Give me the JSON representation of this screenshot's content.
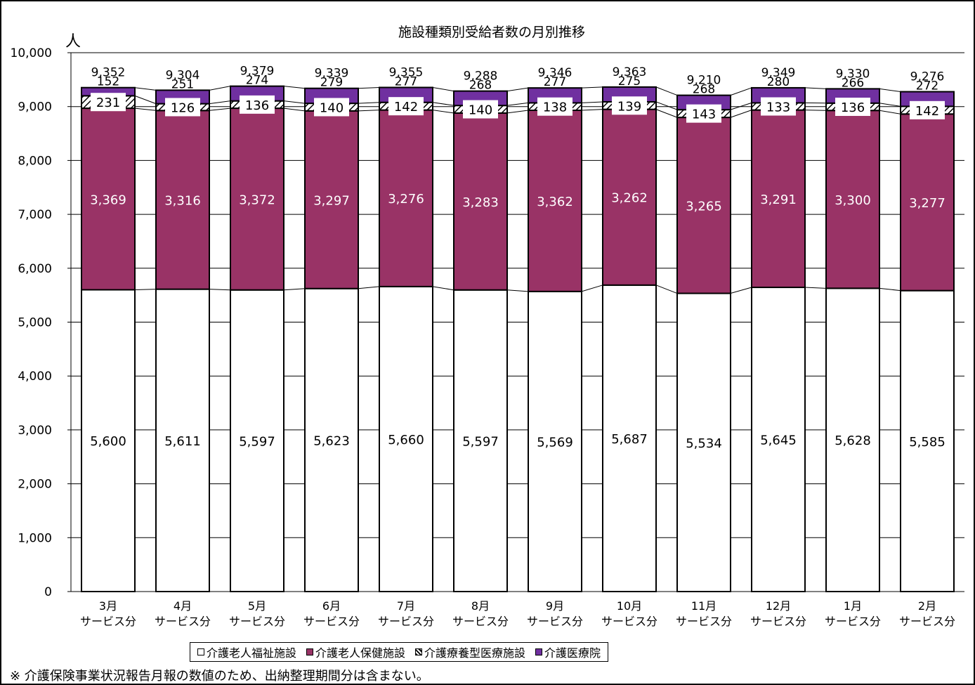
{
  "chart_data": {
    "type": "bar",
    "stacked": true,
    "title": "施設種類別受給者数の月別推移",
    "unit_label": "人",
    "ylim": [
      0,
      10000
    ],
    "yticks": [
      "0",
      "1,000",
      "2,000",
      "3,000",
      "4,000",
      "5,000",
      "6,000",
      "7,000",
      "8,000",
      "9,000",
      "10,000"
    ],
    "grid": true,
    "legend_position": "bottom",
    "categories": [
      [
        "3月",
        "サービス分"
      ],
      [
        "4月",
        "サービス分"
      ],
      [
        "5月",
        "サービス分"
      ],
      [
        "6月",
        "サービス分"
      ],
      [
        "7月",
        "サービス分"
      ],
      [
        "8月",
        "サービス分"
      ],
      [
        "9月",
        "サービス分"
      ],
      [
        "10月",
        "サービス分"
      ],
      [
        "11月",
        "サービス分"
      ],
      [
        "12月",
        "サービス分"
      ],
      [
        "1月",
        "サービス分"
      ],
      [
        "2月",
        "サービス分"
      ]
    ],
    "series": [
      {
        "name": "介護老人福祉施設",
        "color": "#ffffff",
        "values": [
          5600,
          5611,
          5597,
          5623,
          5660,
          5597,
          5569,
          5687,
          5534,
          5645,
          5628,
          5585
        ],
        "labels": [
          "5,600",
          "5,611",
          "5,597",
          "5,623",
          "5,660",
          "5,597",
          "5,569",
          "5,687",
          "5,534",
          "5,645",
          "5,628",
          "5,585"
        ]
      },
      {
        "name": "介護老人保健施設",
        "color": "#993366",
        "values": [
          3369,
          3316,
          3372,
          3297,
          3276,
          3283,
          3362,
          3262,
          3265,
          3291,
          3300,
          3277
        ],
        "labels": [
          "3,369",
          "3,316",
          "3,372",
          "3,297",
          "3,276",
          "3,283",
          "3,362",
          "3,262",
          "3,265",
          "3,291",
          "3,300",
          "3,277"
        ]
      },
      {
        "name": "介護療養型医療施設",
        "color": "#ffffff",
        "values": [
          231,
          126,
          136,
          140,
          142,
          140,
          138,
          139,
          143,
          133,
          136,
          142
        ],
        "labels": [
          "231",
          "126",
          "136",
          "140",
          "142",
          "140",
          "138",
          "139",
          "143",
          "133",
          "136",
          "142"
        ]
      },
      {
        "name": "介護医療院",
        "color": "#7030a0",
        "values": [
          152,
          251,
          274,
          279,
          277,
          268,
          277,
          275,
          268,
          280,
          266,
          272
        ],
        "labels": [
          "152",
          "251",
          "274",
          "279",
          "277",
          "268",
          "277",
          "275",
          "268",
          "280",
          "266",
          "272"
        ]
      }
    ],
    "totals": [
      "9,352",
      "9,304",
      "9,379",
      "9,339",
      "9,355",
      "9,288",
      "9,346",
      "9,363",
      "9,210",
      "9,349",
      "9,330",
      "9,276"
    ]
  },
  "legend": {
    "items": [
      {
        "label": "介護老人福祉施設",
        "color": "#ffffff"
      },
      {
        "label": "介護老人保健施設",
        "color": "#993366"
      },
      {
        "label": "介護療養型医療施設",
        "color": "#ffffff"
      },
      {
        "label": "介護医療院",
        "color": "#7030a0"
      }
    ]
  },
  "note": "※ 介護保険事業状況報告月報の数値のため、出納整理期間分は含まない。"
}
